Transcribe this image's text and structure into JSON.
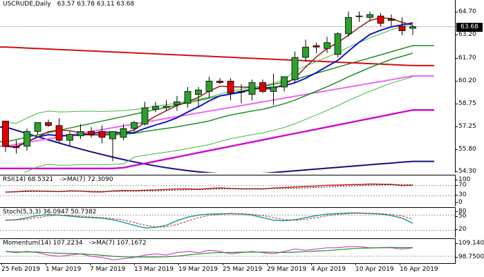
{
  "header": {
    "symbol": "USCRUDE,Daily",
    "ohlc": "63.57 63.78 63.11 63.68"
  },
  "price_tag": "63.68",
  "main_axis": {
    "ticks": [
      "64.70",
      "63.20",
      "61.70",
      "60.20",
      "58.75",
      "57.25",
      "55.80",
      "54.30"
    ]
  },
  "rsi": {
    "title": "RSI(14) 68.5321",
    "ma": "->MA(7) 72.3090",
    "ticks": [
      "100",
      "70",
      "30",
      "0"
    ]
  },
  "stoch": {
    "title": "Stoch(5,3,3) 36.0947 50.7382",
    "ticks": [
      "80",
      "50",
      "20"
    ]
  },
  "momentum": {
    "title": "Momentum(14) 107.2234",
    "ma": "->MA(7) 107.1672",
    "ticks": [
      "109.1400",
      "98.7500"
    ]
  },
  "x_axis": {
    "labels": [
      "25 Feb 2019",
      "1 Mar 2019",
      "7 Mar 2019",
      "13 Mar 2019",
      "19 Mar 2019",
      "25 Mar 2019",
      "29 Mar 2019",
      "4 Apr 2019",
      "10 Apr 2019",
      "16 Apr 2019"
    ]
  },
  "colors": {
    "bull": "#2ca02c",
    "bear": "#e00000",
    "ma_short": "#8b1a1a",
    "ma_mid": "#1414c8",
    "ma_green": "#1f8f1f",
    "ma_red": "#d01010",
    "ma_violet": "#ee66ee",
    "ma_magenta": "#cc10cc",
    "ma_navy": "#101080",
    "band": "#3cb83c",
    "rsi_line": "#cc2020",
    "stoch_main": "#14a0a0",
    "stoch_signal": "#cc2020",
    "mom_main": "#1f8f1f",
    "mom_ma": "#cc22cc"
  },
  "chart_data": {
    "type": "candlestick",
    "title": "USCRUDE,Daily",
    "ylim": [
      54.0,
      65.2
    ],
    "candles": [
      [
        57.3,
        57.3,
        55.2,
        55.6
      ],
      [
        55.6,
        56.0,
        55.1,
        55.5
      ],
      [
        55.6,
        56.8,
        55.3,
        56.6
      ],
      [
        56.6,
        57.2,
        56.4,
        57.2
      ],
      [
        57.2,
        57.4,
        56.9,
        57.0
      ],
      [
        57.0,
        57.5,
        55.8,
        56.0
      ],
      [
        56.0,
        56.6,
        55.6,
        56.4
      ],
      [
        56.3,
        57.1,
        56.1,
        56.6
      ],
      [
        56.6,
        56.9,
        56.2,
        56.4
      ],
      [
        56.6,
        57.0,
        55.8,
        56.2
      ],
      [
        56.1,
        56.6,
        54.6,
        56.6
      ],
      [
        56.2,
        57.1,
        56.0,
        56.8
      ],
      [
        56.8,
        57.3,
        56.6,
        57.2
      ],
      [
        57.1,
        58.6,
        57.0,
        58.2
      ],
      [
        58.1,
        58.6,
        57.9,
        58.3
      ],
      [
        58.2,
        58.7,
        58.0,
        58.3
      ],
      [
        58.4,
        59.0,
        58.0,
        58.6
      ],
      [
        58.5,
        59.6,
        58.2,
        59.3
      ],
      [
        59.1,
        59.6,
        58.2,
        59.4
      ],
      [
        59.3,
        60.3,
        58.9,
        60.0
      ],
      [
        60.0,
        60.2,
        59.8,
        59.9
      ],
      [
        60.0,
        60.2,
        58.7,
        59.2
      ],
      [
        59.3,
        59.8,
        58.5,
        59.3
      ],
      [
        59.1,
        60.1,
        58.7,
        59.9
      ],
      [
        59.9,
        60.1,
        59.2,
        59.3
      ],
      [
        59.3,
        60.5,
        58.4,
        59.6
      ],
      [
        59.6,
        60.2,
        59.3,
        60.3
      ],
      [
        60.1,
        62.0,
        59.9,
        61.6
      ],
      [
        61.6,
        62.8,
        61.3,
        62.3
      ],
      [
        62.4,
        62.6,
        61.9,
        62.3
      ],
      [
        62.2,
        63.0,
        61.9,
        62.6
      ],
      [
        61.8,
        63.3,
        61.6,
        63.2
      ],
      [
        63.2,
        64.7,
        63.0,
        64.3
      ],
      [
        64.4,
        64.7,
        64.0,
        64.4
      ],
      [
        64.3,
        64.7,
        64.1,
        64.5
      ],
      [
        64.4,
        64.6,
        63.7,
        63.9
      ],
      [
        64.2,
        64.5,
        63.7,
        64.1
      ],
      [
        63.7,
        64.3,
        63.1,
        63.4
      ],
      [
        63.57,
        63.78,
        63.11,
        63.68
      ]
    ]
  }
}
